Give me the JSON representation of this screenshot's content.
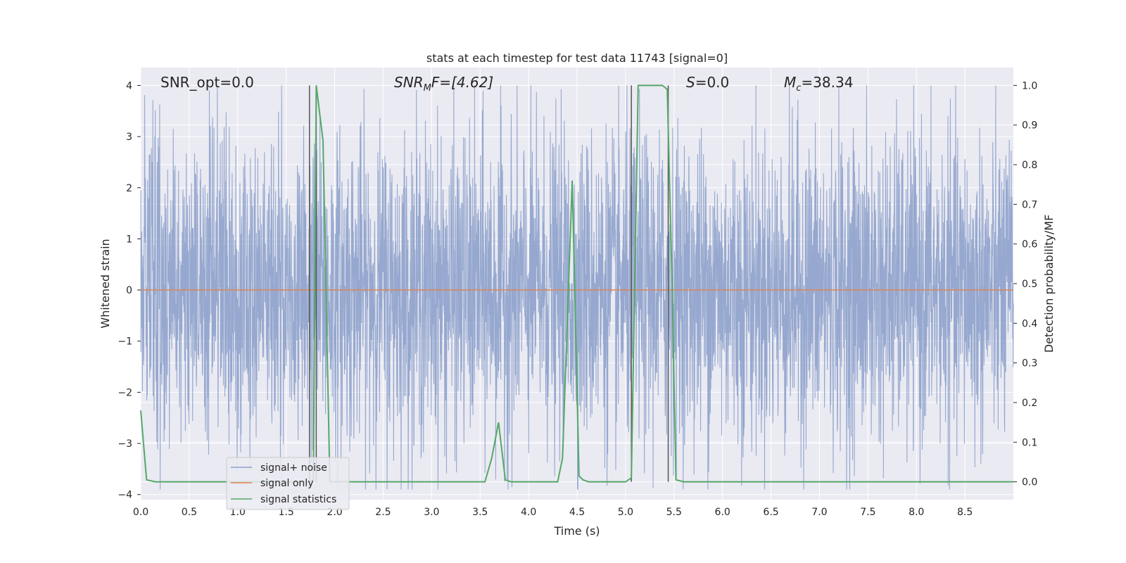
{
  "chart_data": {
    "type": "line",
    "title": "stats at each timestep for test data 11743 [signal=0]",
    "xlabel": "Time (s)",
    "ylabel_left": "Whitened strain",
    "ylabel_right": "Detection probability/MF",
    "xlim": [
      0.0,
      9.0
    ],
    "ylim_left": [
      -4.1,
      4.35
    ],
    "ylim_right": [
      -0.045,
      1.045
    ],
    "grid": true,
    "x_ticks": [
      "0.0",
      "0.5",
      "1.0",
      "1.5",
      "2.0",
      "2.5",
      "3.0",
      "3.5",
      "4.0",
      "4.5",
      "5.0",
      "5.5",
      "6.0",
      "6.5",
      "7.0",
      "7.5",
      "8.0",
      "8.5"
    ],
    "y_ticks_left": [
      "4",
      "3",
      "2",
      "1",
      "0",
      "−1",
      "−2",
      "−3",
      "−4"
    ],
    "y_ticks_right": [
      "1.0",
      "0.9",
      "0.8",
      "0.7",
      "0.6",
      "0.5",
      "0.4",
      "0.3",
      "0.2",
      "0.1",
      "0.0"
    ],
    "annotations": [
      {
        "id": "snr-opt",
        "text": "SNR_opt=0.0"
      },
      {
        "id": "snr-mf",
        "base": "SNR",
        "sub": "M",
        "rest": "F=[4.62]"
      },
      {
        "id": "s-stat",
        "italic": "S",
        "rest": "=0.0"
      },
      {
        "id": "mc",
        "base": "M",
        "sub": "c",
        "rest": "=38.34"
      }
    ],
    "legend": {
      "position": "lower-left",
      "entries": [
        "signal+ noise",
        "signal only",
        "signal statistics"
      ]
    },
    "colors": {
      "noise": "#8da1cb",
      "signal_only": "#dd8452",
      "statistics": "#55a868",
      "vlines": "#555555",
      "axes_bg": "#eaeaf2",
      "grid": "#ffffff"
    },
    "vertical_lines_x": [
      1.74,
      1.81,
      5.06,
      5.44
    ],
    "series": [
      {
        "name": "signal+ noise",
        "axis": "left",
        "envelope_description": "dense noise trace",
        "typical_amplitude": 1.5,
        "peak_max": 4.0,
        "peak_min": -3.9
      },
      {
        "name": "signal only",
        "axis": "left",
        "x": [
          0.0,
          9.0
        ],
        "y": [
          0.0,
          0.0
        ]
      },
      {
        "name": "signal statistics",
        "axis": "right",
        "x": [
          0.0,
          0.06,
          0.15,
          0.3,
          1.0,
          1.74,
          1.78,
          1.81,
          1.88,
          1.95,
          2.1,
          3.0,
          3.55,
          3.62,
          3.69,
          3.76,
          3.82,
          4.0,
          4.3,
          4.35,
          4.45,
          4.52,
          4.56,
          4.62,
          5.0,
          5.06,
          5.13,
          5.2,
          5.38,
          5.43,
          5.48,
          5.52,
          5.6,
          6.0,
          9.0
        ],
        "y": [
          0.18,
          0.005,
          0.0,
          0.0,
          0.0,
          0.0,
          0.005,
          1.0,
          0.86,
          0.0,
          0.0,
          0.0,
          0.0,
          0.06,
          0.15,
          0.005,
          0.0,
          0.0,
          0.0,
          0.06,
          0.76,
          0.015,
          0.005,
          0.0,
          0.0,
          0.01,
          1.0,
          1.0,
          1.0,
          0.99,
          0.5,
          0.005,
          0.0,
          0.0,
          0.0
        ]
      }
    ]
  }
}
